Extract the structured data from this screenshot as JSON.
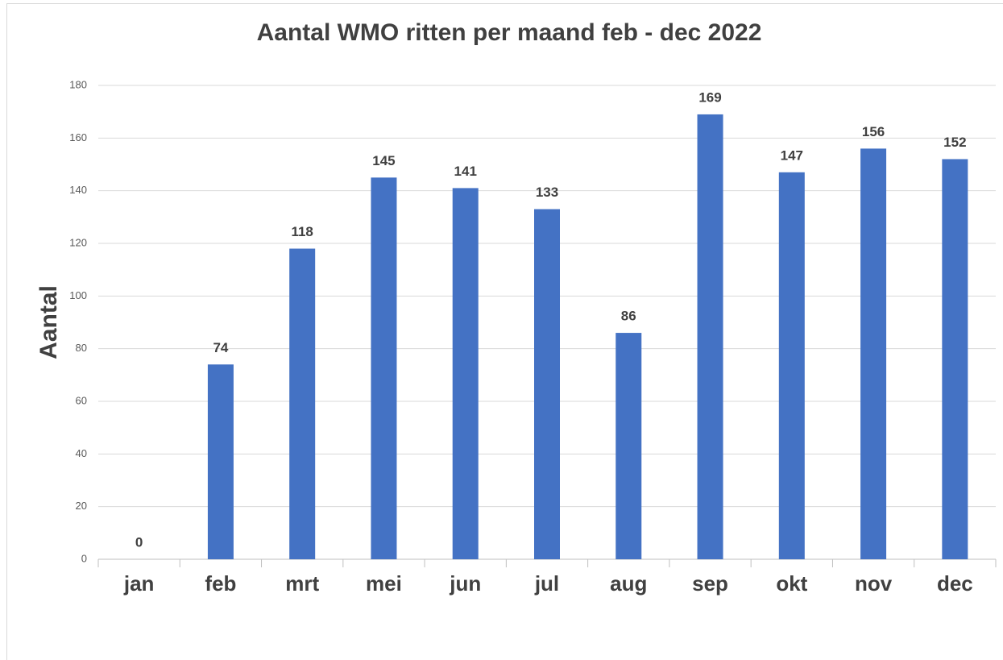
{
  "chart_data": {
    "type": "bar",
    "title": "Aantal WMO ritten per maand feb - dec 2022",
    "y_label": "Aantal",
    "categories": [
      "jan",
      "feb",
      "mrt",
      "mei",
      "jun",
      "jul",
      "aug",
      "sep",
      "okt",
      "nov",
      "dec"
    ],
    "values": [
      0,
      74,
      118,
      145,
      141,
      133,
      86,
      169,
      147,
      156,
      152
    ],
    "color": "#4472c4",
    "ylim": [
      0,
      180
    ],
    "yticks": [
      0,
      20,
      40,
      60,
      80,
      100,
      120,
      140,
      160,
      180
    ],
    "grid": true
  }
}
